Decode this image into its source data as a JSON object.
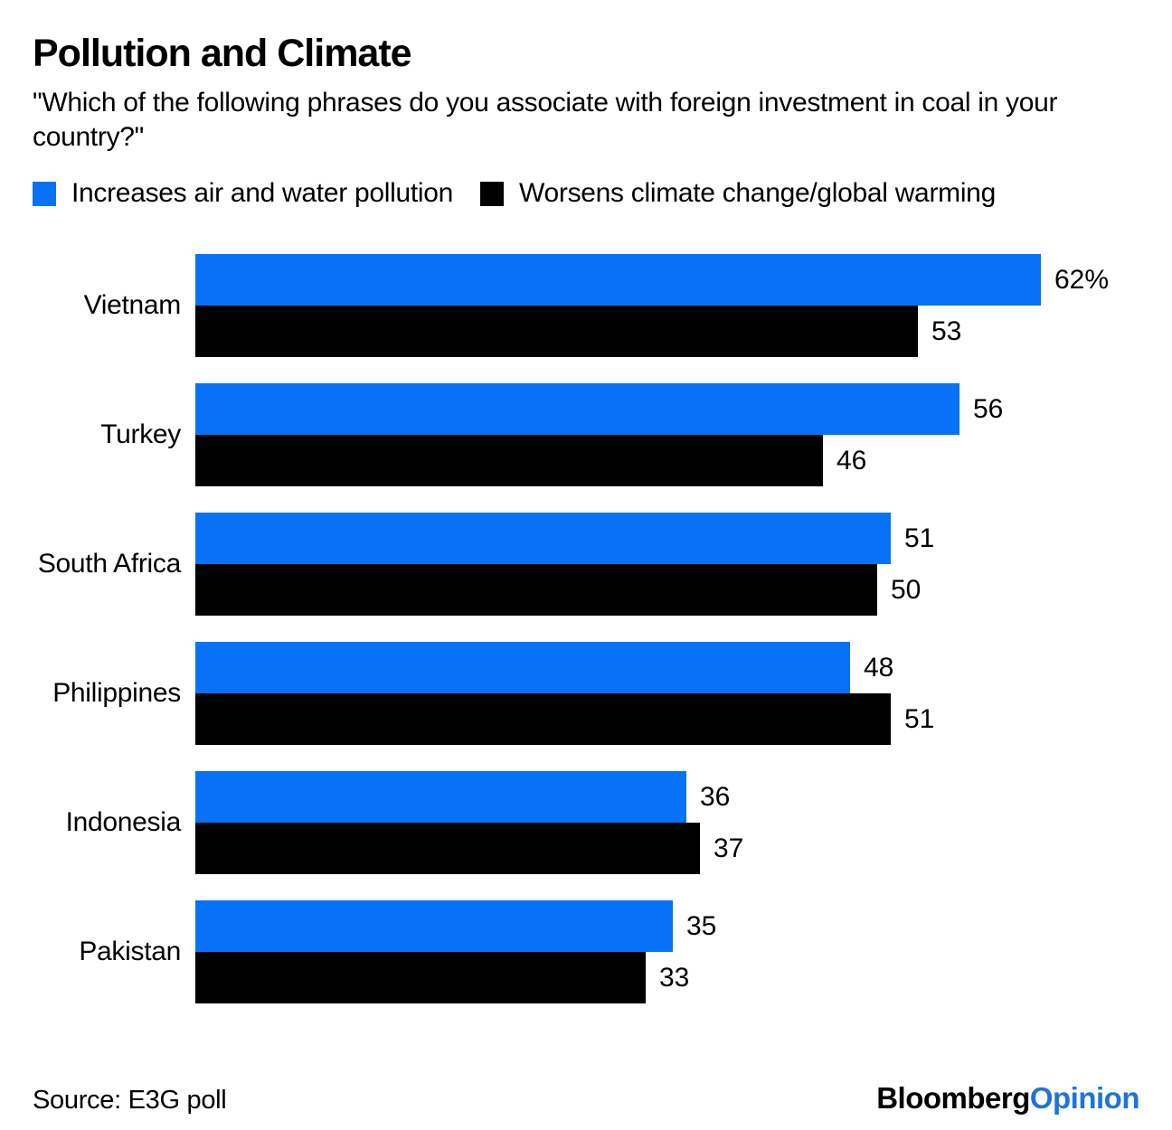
{
  "header": {
    "title": "Pollution and Climate",
    "subtitle": "\"Which of the following phrases do you associate with foreign investment in coal in your country?\""
  },
  "legend": [
    {
      "label": "Increases air and water pollution",
      "color": "#0772F7"
    },
    {
      "label": "Worsens climate change/global warming",
      "color": "#000000"
    }
  ],
  "chart_data": {
    "type": "bar",
    "orientation": "horizontal",
    "title": "Pollution and Climate",
    "subtitle": "\"Which of the following phrases do you associate with foreign investment in coal in your country?\"",
    "categories": [
      "Vietnam",
      "Turkey",
      "South Africa",
      "Philippines",
      "Indonesia",
      "Pakistan"
    ],
    "series": [
      {
        "name": "Increases air and water pollution",
        "color": "#0772F7",
        "values": [
          62,
          56,
          51,
          48,
          36,
          35
        ],
        "labels": [
          "62%",
          "56",
          "51",
          "48",
          "36",
          "35"
        ]
      },
      {
        "name": "Worsens climate change/global warming",
        "color": "#000000",
        "values": [
          53,
          46,
          50,
          51,
          37,
          33
        ],
        "labels": [
          "53",
          "46",
          "50",
          "51",
          "37",
          "33"
        ]
      }
    ],
    "xlim": [
      0,
      62
    ],
    "value_labels_shown": true,
    "unit_suffix_on_first_value": "%",
    "grid": false,
    "legend_position": "top",
    "source": "Source: E3G poll"
  },
  "footer": {
    "source": "Source: E3G poll",
    "brand": {
      "bloomberg": "Bloomberg",
      "opinion": "Opinion"
    }
  },
  "colors": {
    "accent_blue": "#0772F7",
    "bar_black": "#000000",
    "logo_opinion_blue": "#1E73DE",
    "text": "#000000",
    "background": "#FFFFFF"
  }
}
